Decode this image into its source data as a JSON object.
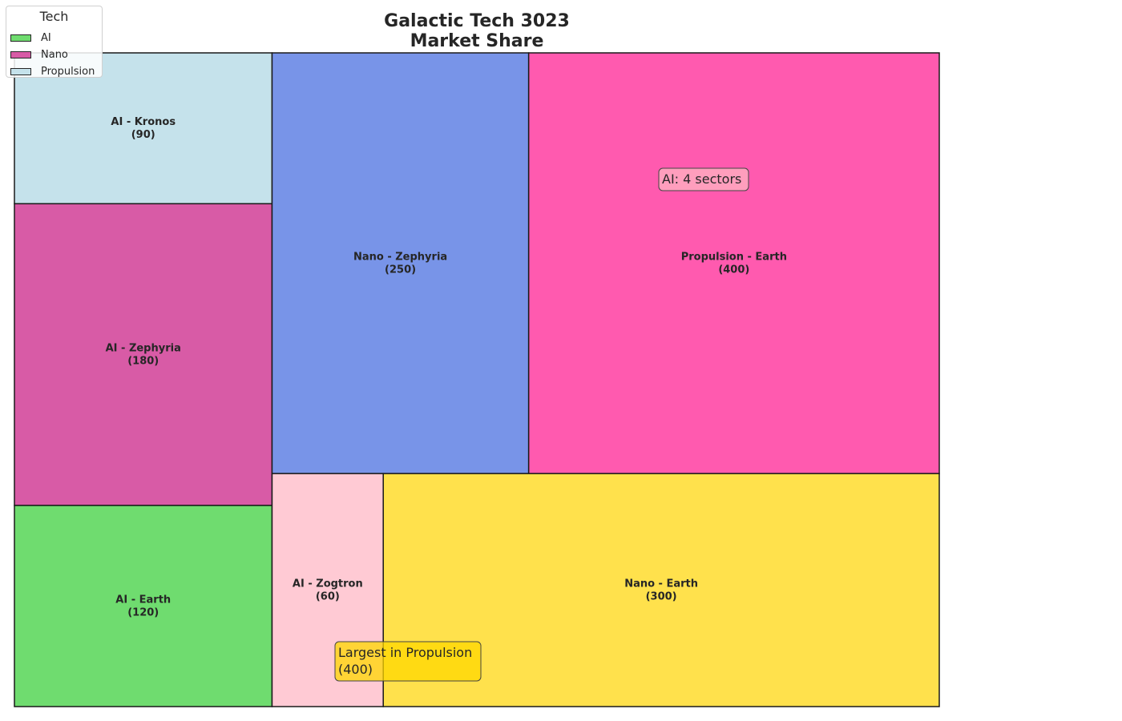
{
  "chart_data": {
    "type": "treemap",
    "title": "Galactic Tech 3023\nMarket Share",
    "legend": {
      "title": "Tech",
      "placement": "top-left",
      "entries": [
        {
          "label": "AI",
          "color": "#6fdc6f"
        },
        {
          "label": "Nano",
          "color": "#d85ba6"
        },
        {
          "label": "Propulsion",
          "color": "#c5e2eb"
        }
      ]
    },
    "items": [
      {
        "category": "AI",
        "sector": "Kronos",
        "label": "AI - Kronos",
        "value": 90,
        "color": "#c5e2eb"
      },
      {
        "category": "AI",
        "sector": "Zephyria",
        "label": "AI - Zephyria",
        "value": 180,
        "color": "#d85ba6"
      },
      {
        "category": "AI",
        "sector": "Earth",
        "label": "AI - Earth",
        "value": 120,
        "color": "#6fdc6f"
      },
      {
        "category": "Nano",
        "sector": "Zephyria",
        "label": "Nano - Zephyria",
        "value": 250,
        "color": "#7894e8"
      },
      {
        "category": "AI",
        "sector": "Zogtron",
        "label": "AI - Zogtron",
        "value": 60,
        "color": "#ffcad4"
      },
      {
        "category": "Propulsion",
        "sector": "Earth",
        "label": "Propulsion - Earth",
        "value": 400,
        "color": "#ff5aaf"
      },
      {
        "category": "Nano",
        "sector": "Earth",
        "label": "Nano - Earth",
        "value": 300,
        "color": "#ffe14c"
      }
    ],
    "annotations": [
      {
        "text": "AI: 4 sectors",
        "face_color": "#ffb6c1"
      },
      {
        "text": "Largest in Propulsion\n(400)",
        "face_color": "#ffd700"
      }
    ]
  }
}
